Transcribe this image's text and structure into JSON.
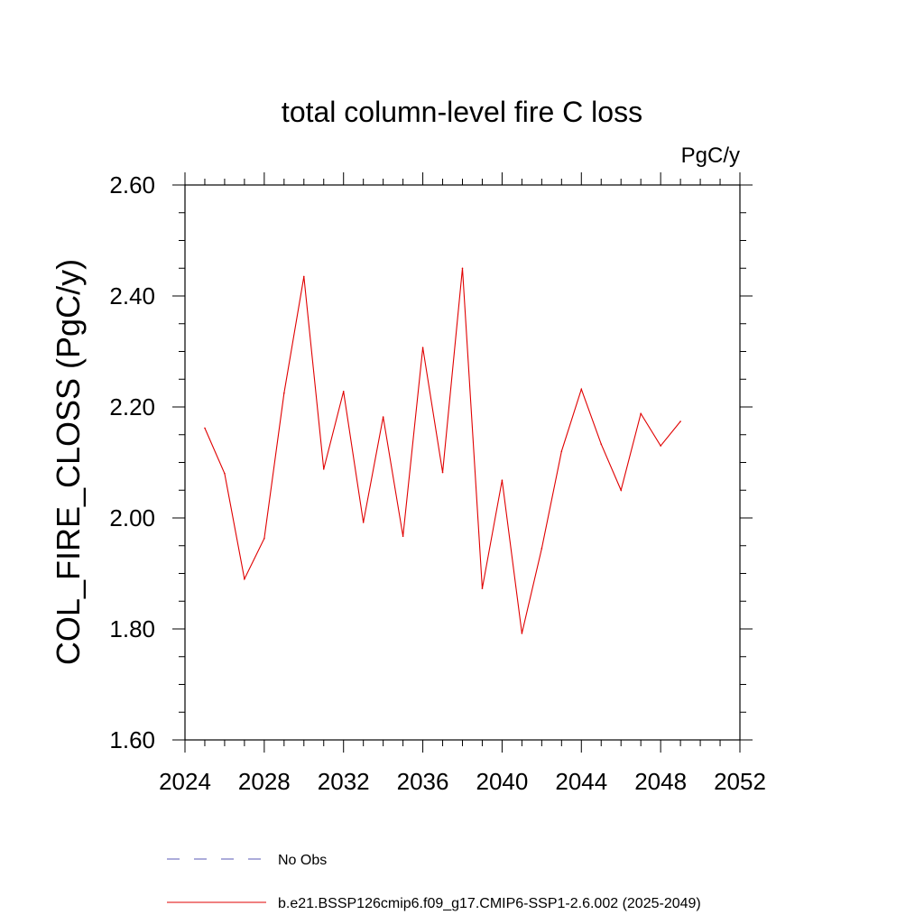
{
  "chart_data": {
    "type": "line",
    "title": "total column-level fire C loss",
    "units": "PgC/y",
    "ylabel": "COL_FIRE_CLOSS  (PgC/y)",
    "xlabel": "",
    "xlim": [
      2024,
      2052
    ],
    "ylim": [
      1.6,
      2.6
    ],
    "x_ticks": [
      "2024",
      "2028",
      "2032",
      "2036",
      "2040",
      "2044",
      "2048",
      "2052"
    ],
    "y_ticks": [
      "1.60",
      "1.80",
      "2.00",
      "2.20",
      "2.40",
      "2.60"
    ],
    "grid": false,
    "legend_position": "bottom",
    "series": [
      {
        "name": "No Obs",
        "style": "dashed",
        "color": "#5a5ab4",
        "x": [],
        "values": []
      },
      {
        "name": "b.e21.BSSP126cmip6.f09_g17.CMIP6-SSP1-2.6.002 (2025-2049)",
        "style": "solid",
        "color": "#e00000",
        "x": [
          2025,
          2026,
          2027,
          2028,
          2029,
          2030,
          2031,
          2032,
          2033,
          2034,
          2035,
          2036,
          2037,
          2038,
          2039,
          2040,
          2041,
          2042,
          2043,
          2044,
          2045,
          2046,
          2047,
          2048,
          2049
        ],
        "values": [
          2.162,
          2.08,
          1.89,
          1.963,
          2.225,
          2.435,
          2.088,
          2.228,
          1.992,
          2.182,
          1.967,
          2.307,
          2.082,
          2.45,
          1.873,
          2.068,
          1.792,
          1.945,
          2.12,
          2.232,
          2.133,
          2.05,
          2.188,
          2.13,
          2.174
        ]
      }
    ]
  }
}
